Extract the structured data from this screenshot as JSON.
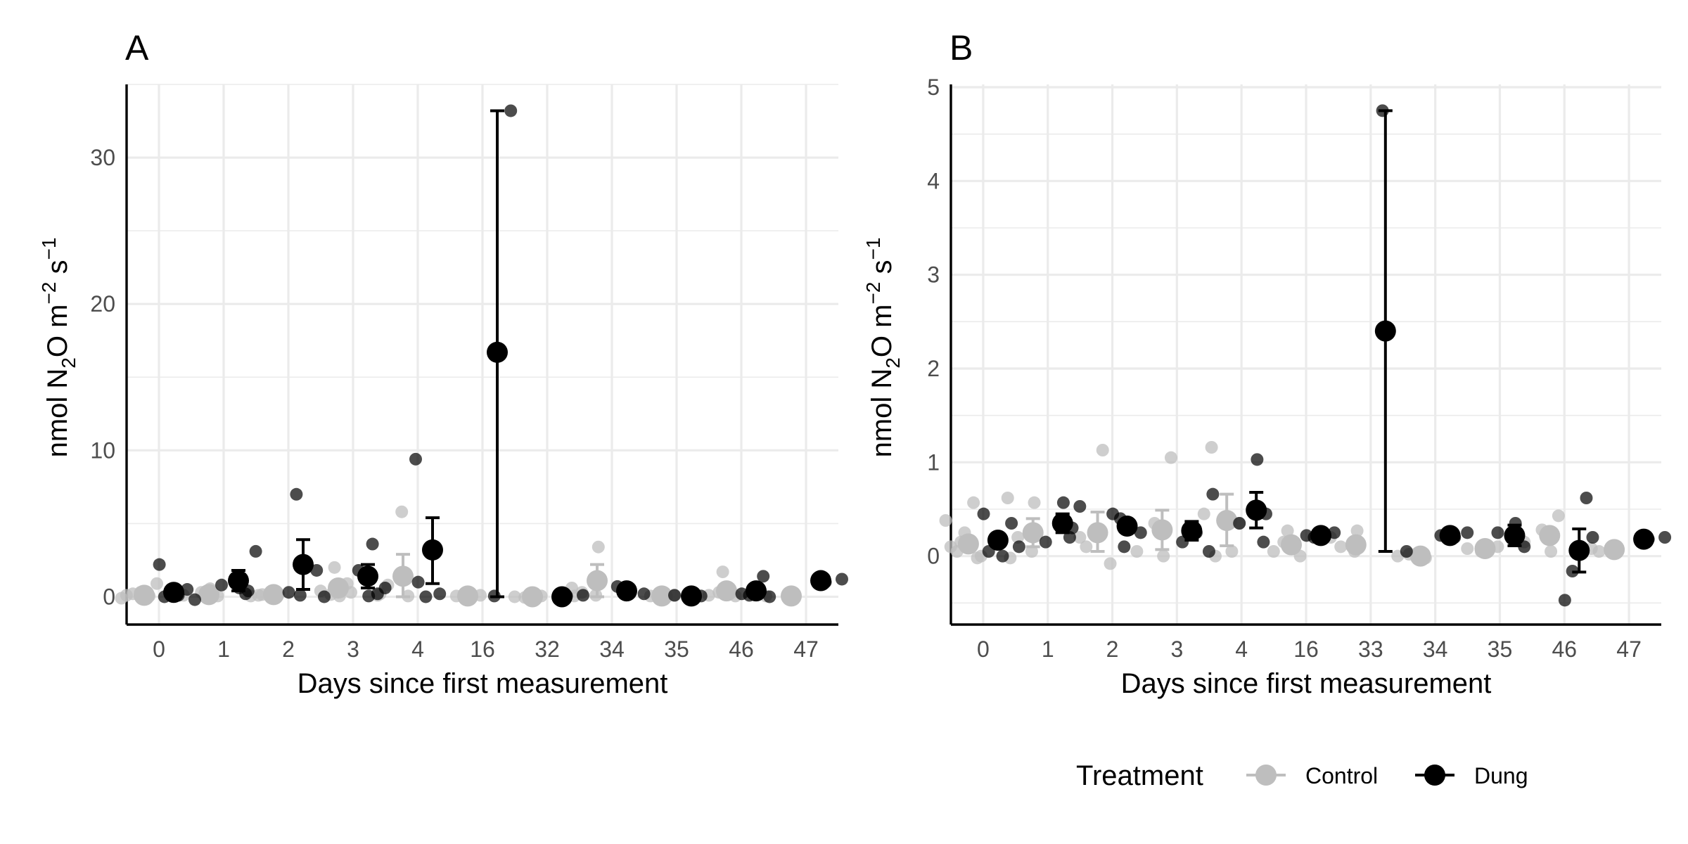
{
  "legend": {
    "title": "Treatment",
    "position": "bottom-right",
    "entries": [
      {
        "name": "Control",
        "color": "#bebebe"
      },
      {
        "name": "Dung",
        "color": "#000000"
      }
    ]
  },
  "chart_data": [
    {
      "panel": "A",
      "type": "scatter",
      "xlabel": "Days since first measurement",
      "ylabel_parts": {
        "pre": "nmol N",
        "sub": "2",
        "mid": "O m",
        "sup1": "−2",
        "mid2": " s",
        "sup2": "−1"
      },
      "categories": [
        "0",
        "1",
        "2",
        "3",
        "4",
        "16",
        "32",
        "34",
        "35",
        "46",
        "47"
      ],
      "ylim": [
        -1.9,
        35
      ],
      "yticks": [
        0,
        10,
        20,
        30
      ],
      "grid": true,
      "series": [
        {
          "name": "Control",
          "color": "#bebebe",
          "means": [
            0.1,
            0.15,
            0.15,
            0.6,
            1.4,
            0.05,
            0,
            1.1,
            0.05,
            0.4,
            0.05
          ],
          "err_lo": [
            null,
            null,
            null,
            null,
            0.0,
            null,
            null,
            0.0,
            null,
            null,
            null
          ],
          "err_hi": [
            null,
            null,
            null,
            null,
            2.9,
            null,
            null,
            2.2,
            null,
            null,
            null
          ],
          "points": [
            [
              0,
              -0.1
            ],
            [
              0,
              0.05
            ],
            [
              0,
              0.2
            ],
            [
              0,
              0.9
            ],
            [
              0,
              0.3
            ],
            [
              0,
              0.1
            ],
            [
              1,
              0.05
            ],
            [
              1,
              0.3
            ],
            [
              1,
              0.55
            ],
            [
              1,
              0.1
            ],
            [
              1,
              0.2
            ],
            [
              2,
              0.1
            ],
            [
              2,
              0.05
            ],
            [
              2,
              0.2
            ],
            [
              2,
              0.15
            ],
            [
              3,
              0.3
            ],
            [
              3,
              2.0
            ],
            [
              3,
              0.4
            ],
            [
              3,
              0.9
            ],
            [
              3,
              0.15
            ],
            [
              3,
              0.05
            ],
            [
              4,
              0.1
            ],
            [
              4,
              5.8
            ],
            [
              4,
              0.8
            ],
            [
              4,
              0.2
            ],
            [
              4,
              0.05
            ],
            [
              5,
              0.05
            ],
            [
              5,
              0.1
            ],
            [
              5,
              0.0
            ],
            [
              6,
              0.0
            ],
            [
              6,
              0.05
            ],
            [
              6,
              -0.05
            ],
            [
              7,
              3.4
            ],
            [
              7,
              0.6
            ],
            [
              7,
              0.1
            ],
            [
              7,
              0.3
            ],
            [
              7,
              0.05
            ],
            [
              8,
              0.0
            ],
            [
              8,
              0.05
            ],
            [
              8,
              0.1
            ],
            [
              9,
              1.7
            ],
            [
              9,
              0.1
            ],
            [
              9,
              0.05
            ],
            [
              9,
              0.3
            ],
            [
              10,
              0.0
            ],
            [
              10,
              0.05
            ],
            [
              10,
              0.1
            ]
          ]
        },
        {
          "name": "Dung",
          "color": "#000000",
          "means": [
            0.3,
            1.1,
            2.2,
            1.4,
            3.2,
            16.7,
            0.0,
            0.4,
            0.05,
            0.4,
            1.1
          ],
          "err_lo": [
            null,
            0.4,
            0.5,
            0.6,
            0.9,
            0.0,
            null,
            null,
            null,
            null,
            null
          ],
          "err_hi": [
            null,
            1.8,
            3.9,
            2.2,
            5.4,
            33.2,
            null,
            null,
            null,
            null,
            null
          ],
          "points": [
            [
              0,
              2.2
            ],
            [
              0,
              0.5
            ],
            [
              0,
              0.2
            ],
            [
              0,
              -0.2
            ],
            [
              0,
              0.1
            ],
            [
              0,
              0.0
            ],
            [
              1,
              3.1
            ],
            [
              1,
              0.6
            ],
            [
              1,
              0.4
            ],
            [
              1,
              0.8
            ],
            [
              1,
              0.2
            ],
            [
              2,
              7.0
            ],
            [
              2,
              0.3
            ],
            [
              2,
              1.8
            ],
            [
              2,
              0.1
            ],
            [
              2,
              0.0
            ],
            [
              3,
              3.6
            ],
            [
              3,
              1.8
            ],
            [
              3,
              0.6
            ],
            [
              3,
              0.05
            ],
            [
              3,
              0.2
            ],
            [
              4,
              9.4
            ],
            [
              4,
              0.2
            ],
            [
              4,
              0.0
            ],
            [
              4,
              1.0
            ],
            [
              5,
              33.2
            ],
            [
              5,
              0.05
            ],
            [
              6,
              0.1
            ],
            [
              6,
              0.05
            ],
            [
              7,
              0.7
            ],
            [
              7,
              0.2
            ],
            [
              7,
              0.4
            ],
            [
              8,
              0.05
            ],
            [
              8,
              0.1
            ],
            [
              9,
              1.4
            ],
            [
              9,
              0.1
            ],
            [
              9,
              0.2
            ],
            [
              9,
              0.0
            ],
            [
              10,
              1.1
            ],
            [
              10,
              1.2
            ],
            [
              10,
              1.0
            ]
          ]
        }
      ]
    },
    {
      "panel": "B",
      "type": "scatter",
      "xlabel": "Days since first measurement",
      "ylabel_parts": {
        "pre": "nmol N",
        "sub": "2",
        "mid": "O m",
        "sup1": "−2",
        "mid2": " s",
        "sup2": "−1"
      },
      "categories": [
        "0",
        "1",
        "2",
        "3",
        "4",
        "16",
        "33",
        "34",
        "35",
        "46",
        "47"
      ],
      "ylim": [
        -0.73,
        5.03
      ],
      "yticks": [
        0,
        1,
        2,
        3,
        4,
        5
      ],
      "grid": true,
      "series": [
        {
          "name": "Control",
          "color": "#bebebe",
          "means": [
            0.13,
            0.25,
            0.25,
            0.28,
            0.38,
            0.12,
            0.12,
            0.0,
            0.08,
            0.22,
            0.07
          ],
          "err_lo": [
            null,
            0.1,
            0.05,
            0.07,
            0.11,
            null,
            null,
            null,
            null,
            null,
            null
          ],
          "err_hi": [
            null,
            0.4,
            0.47,
            0.49,
            0.66,
            null,
            null,
            null,
            null,
            null,
            null
          ],
          "points": [
            [
              0,
              0.38
            ],
            [
              0,
              0.57
            ],
            [
              0,
              0.05
            ],
            [
              0,
              0.0
            ],
            [
              0,
              0.25
            ],
            [
              0,
              0.1
            ],
            [
              0,
              -0.02
            ],
            [
              0,
              0.15
            ],
            [
              1,
              0.57
            ],
            [
              1,
              0.62
            ],
            [
              1,
              0.05
            ],
            [
              1,
              0.2
            ],
            [
              1,
              -0.02
            ],
            [
              2,
              1.13
            ],
            [
              2,
              0.1
            ],
            [
              2,
              -0.08
            ],
            [
              2,
              0.25
            ],
            [
              2,
              0.2
            ],
            [
              3,
              1.05
            ],
            [
              3,
              0.35
            ],
            [
              3,
              0.0
            ],
            [
              3,
              0.05
            ],
            [
              3,
              0.25
            ],
            [
              4,
              1.16
            ],
            [
              4,
              0.45
            ],
            [
              4,
              0.05
            ],
            [
              4,
              0.0
            ],
            [
              4,
              0.35
            ],
            [
              5,
              0.27
            ],
            [
              5,
              0.05
            ],
            [
              5,
              0.0
            ],
            [
              5,
              0.15
            ],
            [
              6,
              0.27
            ],
            [
              6,
              0.2
            ],
            [
              6,
              0.05
            ],
            [
              6,
              0.1
            ],
            [
              7,
              0.0
            ],
            [
              7,
              -0.02
            ],
            [
              7,
              0.02
            ],
            [
              8,
              0.1
            ],
            [
              8,
              0.05
            ],
            [
              8,
              0.08
            ],
            [
              9,
              0.43
            ],
            [
              9,
              0.28
            ],
            [
              9,
              0.05
            ],
            [
              9,
              0.15
            ],
            [
              10,
              0.1
            ],
            [
              10,
              0.05
            ],
            [
              10,
              0.08
            ]
          ]
        },
        {
          "name": "Dung",
          "color": "#000000",
          "means": [
            0.17,
            0.35,
            0.32,
            0.27,
            0.49,
            0.22,
            2.4,
            0.22,
            0.22,
            0.06,
            0.18
          ],
          "err_lo": [
            null,
            0.25,
            null,
            0.17,
            0.3,
            null,
            0.05,
            null,
            0.11,
            -0.17,
            null
          ],
          "err_hi": [
            null,
            0.45,
            null,
            0.37,
            0.68,
            null,
            4.75,
            null,
            0.33,
            0.29,
            null
          ],
          "points": [
            [
              0,
              0.45
            ],
            [
              0,
              0.35
            ],
            [
              0,
              0.2
            ],
            [
              0,
              0.1
            ],
            [
              0,
              0.0
            ],
            [
              0,
              0.05
            ],
            [
              1,
              0.53
            ],
            [
              1,
              0.57
            ],
            [
              1,
              0.3
            ],
            [
              1,
              0.15
            ],
            [
              1,
              0.2
            ],
            [
              2,
              0.4
            ],
            [
              2,
              0.45
            ],
            [
              2,
              0.25
            ],
            [
              2,
              0.1
            ],
            [
              3,
              0.66
            ],
            [
              3,
              0.25
            ],
            [
              3,
              0.15
            ],
            [
              3,
              0.05
            ],
            [
              4,
              1.03
            ],
            [
              4,
              0.45
            ],
            [
              4,
              0.35
            ],
            [
              4,
              0.15
            ],
            [
              5,
              0.2
            ],
            [
              5,
              0.22
            ],
            [
              5,
              0.25
            ],
            [
              6,
              4.75
            ],
            [
              6,
              0.05
            ],
            [
              7,
              0.2
            ],
            [
              7,
              0.22
            ],
            [
              7,
              0.25
            ],
            [
              8,
              0.35
            ],
            [
              8,
              0.1
            ],
            [
              8,
              0.25
            ],
            [
              9,
              0.62
            ],
            [
              9,
              -0.16
            ],
            [
              9,
              -0.47
            ],
            [
              9,
              0.2
            ],
            [
              10,
              0.15
            ],
            [
              10,
              0.2
            ],
            [
              10,
              0.18
            ]
          ]
        }
      ]
    }
  ]
}
